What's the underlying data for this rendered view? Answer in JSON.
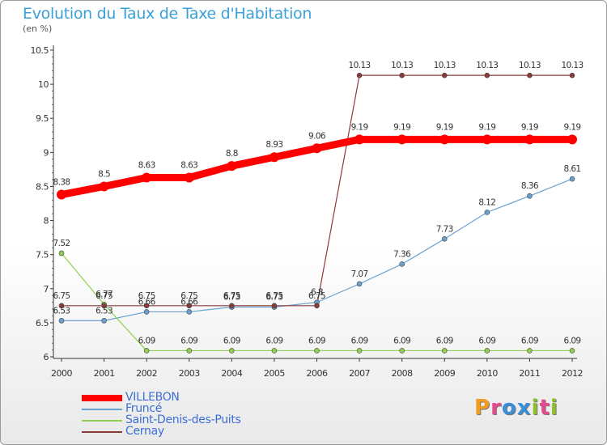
{
  "title": "Evolution du Taux de Taxe d'Habitation",
  "subtitle": "(en %)",
  "logo": "Proxiti",
  "chart_data": {
    "type": "line",
    "x": [
      "2000",
      "2001",
      "2002",
      "2003",
      "2004",
      "2005",
      "2006",
      "2007",
      "2008",
      "2009",
      "2010",
      "2011",
      "2012"
    ],
    "ylim": [
      6,
      10.5
    ],
    "yticks": [
      "6",
      "6.5",
      "7",
      "7.5",
      "8",
      "8.5",
      "9",
      "9.5",
      "10",
      "10.5"
    ],
    "grid": false,
    "legend_position": "bottom-left",
    "series": [
      {
        "name": "VILLEBON",
        "color": "#ff0000",
        "values": [
          8.38,
          8.5,
          8.63,
          8.63,
          8.8,
          8.93,
          9.06,
          9.19,
          9.19,
          9.19,
          9.19,
          9.19,
          9.19
        ]
      },
      {
        "name": "Fruncé",
        "color": "#6aa0d0",
        "values": [
          6.53,
          6.53,
          6.66,
          6.66,
          6.73,
          6.73,
          6.8,
          7.07,
          7.36,
          7.73,
          8.12,
          8.36,
          8.61
        ]
      },
      {
        "name": "Saint-Denis-des-Puits",
        "color": "#90d050",
        "values": [
          7.52,
          6.77,
          6.09,
          6.09,
          6.09,
          6.09,
          6.09,
          6.09,
          6.09,
          6.09,
          6.09,
          6.09,
          6.09
        ]
      },
      {
        "name": "Cernay",
        "color": "#8b3a3a",
        "values": [
          6.75,
          6.75,
          6.75,
          6.75,
          6.75,
          6.75,
          6.75,
          10.13,
          10.13,
          10.13,
          10.13,
          10.13,
          10.13
        ]
      }
    ],
    "data_labels": [
      [
        "8.38",
        "8.5",
        "8.63",
        "8.63",
        "8.8",
        "8.93",
        "9.06",
        "9.19",
        "9.19",
        "9.19",
        "9.19",
        "9.19",
        "9.19"
      ],
      [
        "6.53",
        "6.53",
        "6.66",
        "6.66",
        "6.73",
        "6.73",
        "6.8",
        "7.07",
        "7.36",
        "7.73",
        "8.12",
        "8.36",
        "8.61"
      ],
      [
        "7.52",
        "6.77",
        "6.09",
        "6.09",
        "6.09",
        "6.09",
        "6.09",
        "6.09",
        "6.09",
        "6.09",
        "6.09",
        "6.09",
        "6.09"
      ],
      [
        "6.75",
        "6.75",
        "6.75",
        "6.75",
        "6.75",
        "6.75",
        "6.75",
        "10.13",
        "10.13",
        "10.13",
        "10.13",
        "10.13",
        "10.13"
      ]
    ]
  }
}
